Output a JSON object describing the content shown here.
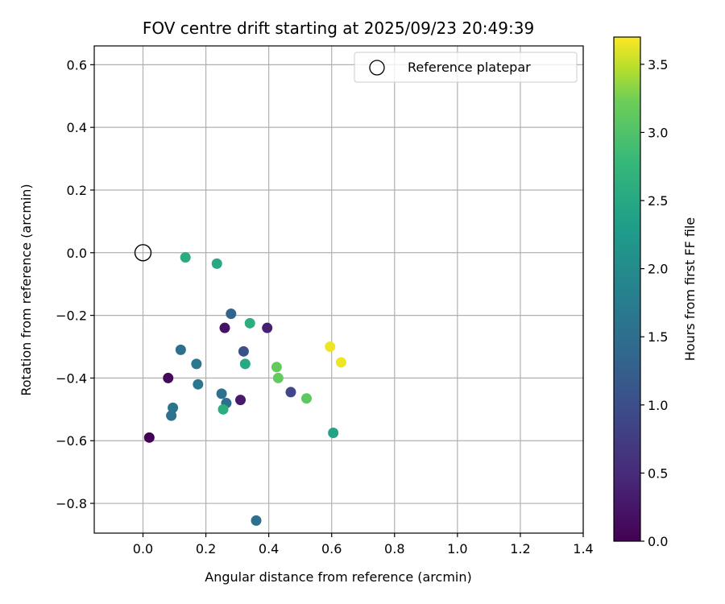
{
  "chart_data": {
    "type": "scatter",
    "title": "FOV centre drift starting at 2025/09/23 20:49:39",
    "xlabel": "Angular distance from reference (arcmin)",
    "ylabel": "Rotation from reference (arcmin)",
    "xlim": [
      -0.155,
      1.4
    ],
    "ylim": [
      -0.895,
      0.66
    ],
    "xticks": [
      0.0,
      0.2,
      0.4,
      0.6,
      0.8,
      1.0,
      1.2,
      1.4
    ],
    "yticks": [
      -0.8,
      -0.6,
      -0.4,
      -0.2,
      0.0,
      0.2,
      0.4,
      0.6
    ],
    "xtick_labels": [
      "0.0",
      "0.2",
      "0.4",
      "0.6",
      "0.8",
      "1.0",
      "1.2",
      "1.4"
    ],
    "ytick_labels": [
      "−0.8",
      "−0.6",
      "−0.4",
      "−0.2",
      "0.0",
      "0.2",
      "0.4",
      "0.6"
    ],
    "grid": true,
    "legend": {
      "location": "upper-right",
      "entries": [
        {
          "label": "Reference platepar",
          "marker": "open-circle"
        }
      ]
    },
    "reference_point": {
      "x": 0.0,
      "y": 0.0
    },
    "colorbar": {
      "label": "Hours from first FF file",
      "range": [
        0.0,
        3.7
      ],
      "ticks": [
        0.0,
        0.5,
        1.0,
        1.5,
        2.0,
        2.5,
        3.0,
        3.5
      ],
      "tick_labels": [
        "0.0",
        "0.5",
        "1.0",
        "1.5",
        "2.0",
        "2.5",
        "3.0",
        "3.5"
      ],
      "colormap": "viridis"
    },
    "points": [
      {
        "x": 0.02,
        "y": -0.59,
        "c": 0.0
      },
      {
        "x": 0.08,
        "y": -0.4,
        "c": 0.1
      },
      {
        "x": 0.26,
        "y": -0.24,
        "c": 0.2
      },
      {
        "x": 0.31,
        "y": -0.47,
        "c": 0.3
      },
      {
        "x": 0.395,
        "y": -0.24,
        "c": 0.35
      },
      {
        "x": 0.47,
        "y": -0.445,
        "c": 0.9
      },
      {
        "x": 0.32,
        "y": -0.315,
        "c": 1.05
      },
      {
        "x": 0.28,
        "y": -0.195,
        "c": 1.35
      },
      {
        "x": 0.265,
        "y": -0.48,
        "c": 1.5
      },
      {
        "x": 0.36,
        "y": -0.855,
        "c": 1.5
      },
      {
        "x": 0.12,
        "y": -0.31,
        "c": 1.5
      },
      {
        "x": 0.09,
        "y": -0.52,
        "c": 1.55
      },
      {
        "x": 0.25,
        "y": -0.45,
        "c": 1.55
      },
      {
        "x": 0.095,
        "y": -0.495,
        "c": 1.6
      },
      {
        "x": 0.17,
        "y": -0.355,
        "c": 1.65
      },
      {
        "x": 0.175,
        "y": -0.42,
        "c": 1.65
      },
      {
        "x": 0.605,
        "y": -0.575,
        "c": 2.4
      },
      {
        "x": 0.325,
        "y": -0.355,
        "c": 2.5
      },
      {
        "x": 0.235,
        "y": -0.035,
        "c": 2.5
      },
      {
        "x": 0.135,
        "y": -0.015,
        "c": 2.55
      },
      {
        "x": 0.34,
        "y": -0.225,
        "c": 2.6
      },
      {
        "x": 0.255,
        "y": -0.5,
        "c": 2.6
      },
      {
        "x": 0.52,
        "y": -0.465,
        "c": 3.1
      },
      {
        "x": 0.425,
        "y": -0.365,
        "c": 3.15
      },
      {
        "x": 0.43,
        "y": -0.4,
        "c": 3.15
      },
      {
        "x": 0.595,
        "y": -0.3,
        "c": 3.65
      },
      {
        "x": 0.63,
        "y": -0.35,
        "c": 3.65
      }
    ]
  }
}
